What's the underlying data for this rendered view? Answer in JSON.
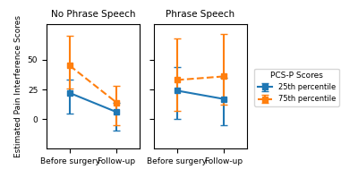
{
  "chart_data": [
    {
      "type": "line",
      "title": "No Phrase Speech",
      "categories": [
        "Before surgery",
        "Follow-up"
      ],
      "ylabel": "Estimated Pain Interference Scores",
      "ylim": [
        -25,
        80
      ],
      "yticks": [
        0,
        25,
        50
      ],
      "series": [
        {
          "name": "25th percentile",
          "line_style": "solid",
          "marker": "square",
          "values": [
            22,
            6
          ],
          "yerr_low": [
            17,
            16
          ],
          "yerr_high": [
            11,
            8
          ]
        },
        {
          "name": "75th percentile",
          "line_style": "dashed",
          "marker": "square",
          "values": [
            45,
            14
          ],
          "yerr_low": [
            19,
            19
          ],
          "yerr_high": [
            25,
            14
          ]
        }
      ]
    },
    {
      "type": "line",
      "title": "Phrase Speech",
      "categories": [
        "Before surgery",
        "Follow-up"
      ],
      "ylim": [
        -25,
        80
      ],
      "yticks": [
        0,
        25,
        50
      ],
      "tick_labels": "x",
      "legend": "right",
      "legend_title": "PCS-P Scores",
      "series": [
        {
          "name": "25th percentile",
          "line_style": "solid",
          "marker": "square",
          "values": [
            24,
            17
          ],
          "yerr_low": [
            24,
            22
          ],
          "yerr_high": [
            20,
            18
          ]
        },
        {
          "name": "75th percentile",
          "line_style": "dashed",
          "marker": "square",
          "values": [
            33,
            36
          ],
          "yerr_low": [
            26,
            24
          ],
          "yerr_high": [
            35,
            36
          ]
        }
      ]
    }
  ]
}
